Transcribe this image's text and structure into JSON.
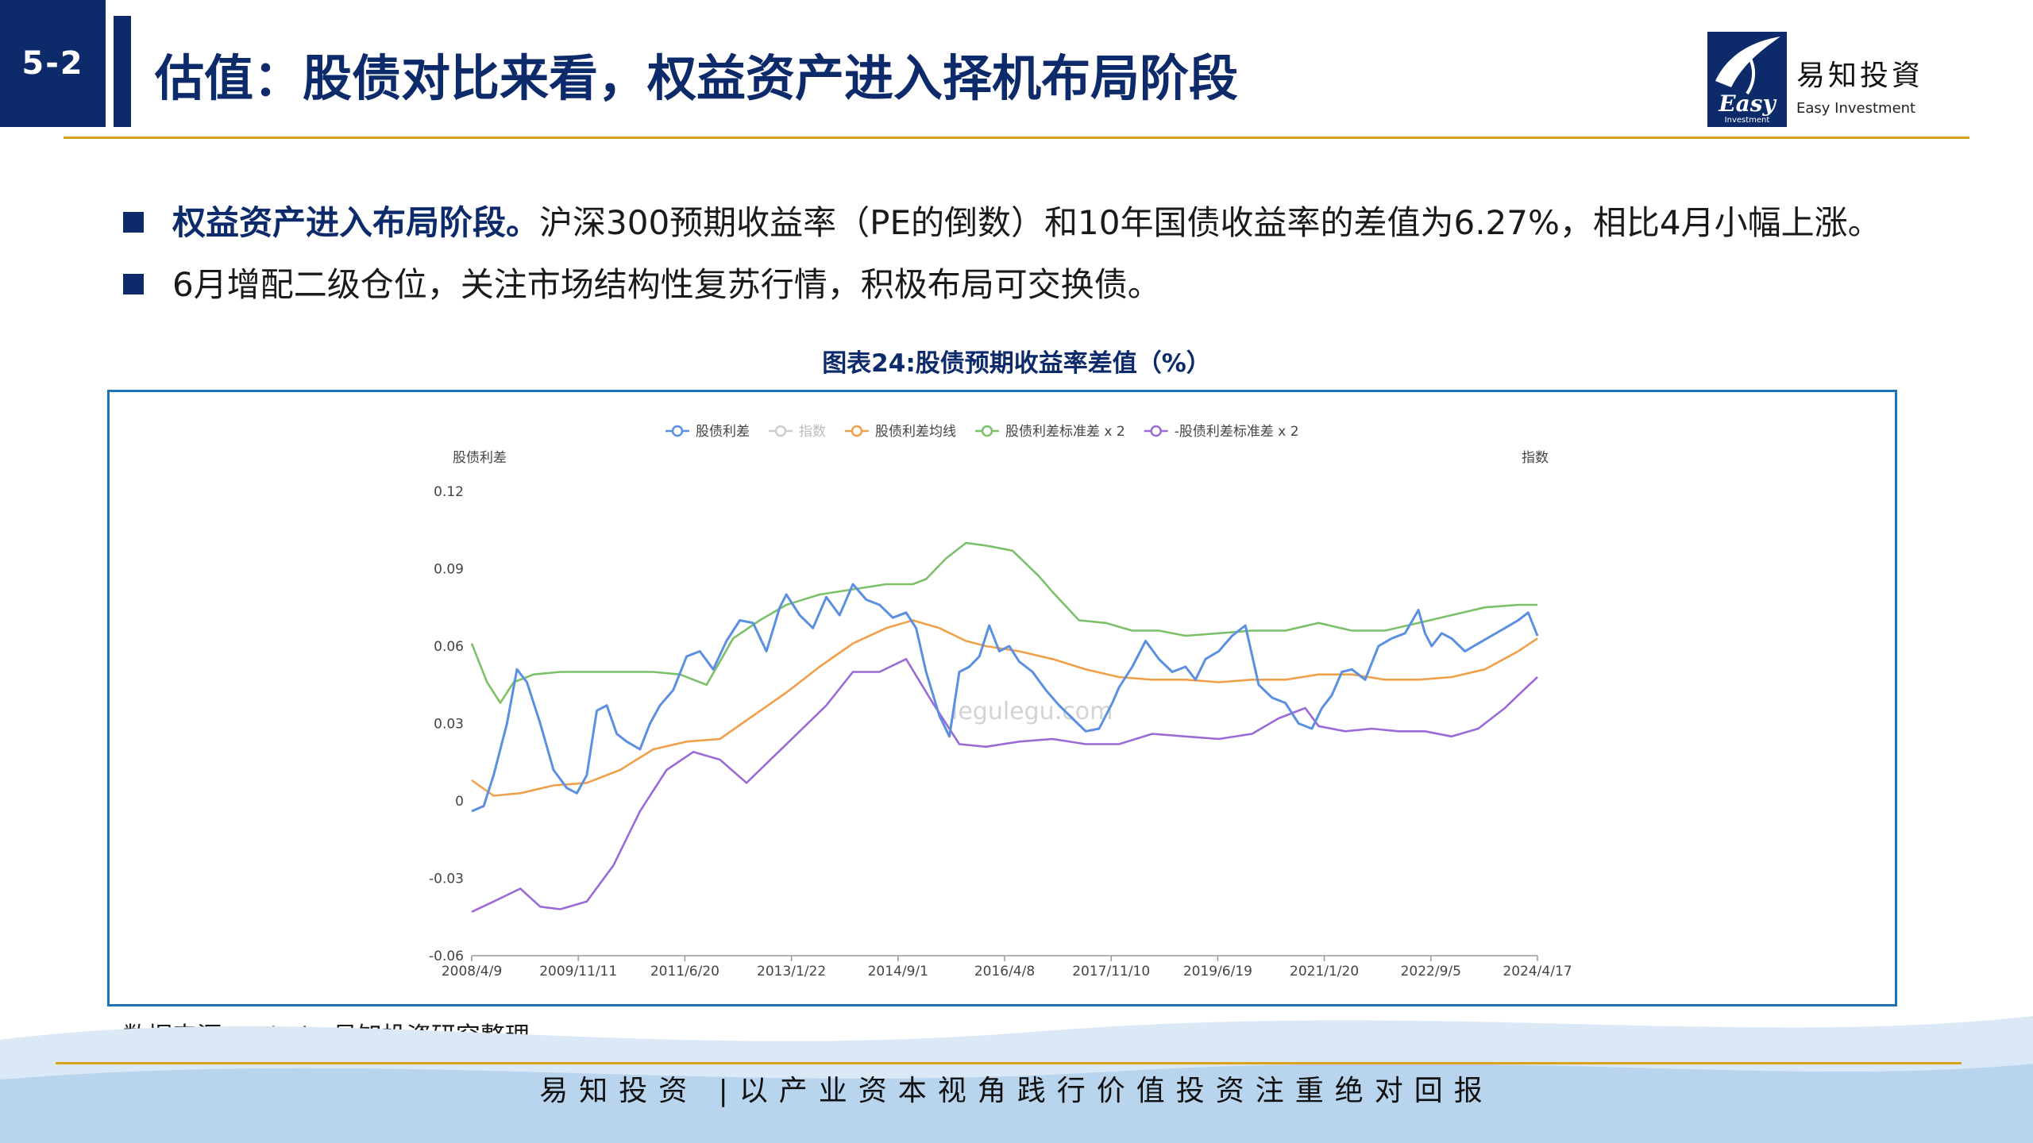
{
  "header": {
    "section_no": "5-2",
    "title": "估值：股债对比来看，权益资产进入择机布局阶段"
  },
  "logo": {
    "cn": "易知投資",
    "en": "Easy Investment",
    "mark_text": "Easy",
    "mark_sub": "Investment"
  },
  "bullets": [
    {
      "bold": "权益资产进入布局阶段。",
      "text": "沪深300预期收益率（PE的倒数）和10年国债收益率的差值为6.27%，相比4月小幅上涨。"
    },
    {
      "bold": "",
      "text": "6月增配二级仓位，关注市场结构性复苏行情，积极布局可交换债。"
    }
  ],
  "chart_title": "图表24:股债预期收益率差值（%）",
  "source": "数据来源：Wind、易知投资研究整理",
  "footer": "易知投资 |以产业资本视角践行价值投资注重绝对回报",
  "watermark": "legulegu.com",
  "chart_data": {
    "type": "line",
    "title": "",
    "ylabel_left": "股债利差",
    "ylabel_right": "指数",
    "ylim": [
      -0.06,
      0.12
    ],
    "yticks": [
      "0.12",
      "0.09",
      "0.06",
      "0.03",
      "0",
      "-0.03",
      "-0.06"
    ],
    "xticks": [
      "2008/4/9",
      "2009/11/11",
      "2011/6/20",
      "2013/1/22",
      "2014/9/1",
      "2016/4/8",
      "2017/11/10",
      "2019/6/19",
      "2021/1/20",
      "2022/9/5",
      "2024/4/17"
    ],
    "xlim": [
      2008.27,
      2024.29
    ],
    "legend_position": "top",
    "legend": [
      {
        "name": "股债利差",
        "color": "#5b8fe0"
      },
      {
        "name": "指数",
        "color": "#cccccc"
      },
      {
        "name": "股债利差均线",
        "color": "#f0a04b"
      },
      {
        "name": "股债利差标准差 x 2",
        "color": "#7cc16a"
      },
      {
        "name": "-股债利差标准差 x 2",
        "color": "#9b6ad6"
      }
    ],
    "series": [
      {
        "name": "股债利差",
        "color": "#5b8fe0",
        "x": [
          2008.27,
          2008.45,
          2008.6,
          2008.8,
          2008.95,
          2009.1,
          2009.3,
          2009.5,
          2009.7,
          2009.85,
          2010.0,
          2010.15,
          2010.3,
          2010.45,
          2010.6,
          2010.8,
          2010.95,
          2011.1,
          2011.3,
          2011.5,
          2011.7,
          2011.9,
          2012.1,
          2012.3,
          2012.5,
          2012.7,
          2012.9,
          2013.0,
          2013.2,
          2013.4,
          2013.6,
          2013.8,
          2014.0,
          2014.2,
          2014.4,
          2014.6,
          2014.8,
          2014.95,
          2015.1,
          2015.3,
          2015.45,
          2015.6,
          2015.75,
          2015.9,
          2016.05,
          2016.2,
          2016.35,
          2016.5,
          2016.7,
          2016.9,
          2017.1,
          2017.3,
          2017.5,
          2017.7,
          2017.9,
          2018.0,
          2018.2,
          2018.4,
          2018.6,
          2018.8,
          2019.0,
          2019.15,
          2019.3,
          2019.5,
          2019.7,
          2019.9,
          2020.1,
          2020.3,
          2020.5,
          2020.7,
          2020.9,
          2021.05,
          2021.2,
          2021.35,
          2021.5,
          2021.7,
          2021.9,
          2022.1,
          2022.3,
          2022.5,
          2022.6,
          2022.7,
          2022.85,
          2023.0,
          2023.2,
          2023.4,
          2023.6,
          2023.8,
          2024.0,
          2024.15,
          2024.29
        ],
        "y": [
          -0.004,
          -0.002,
          0.01,
          0.03,
          0.051,
          0.046,
          0.03,
          0.012,
          0.005,
          0.003,
          0.01,
          0.035,
          0.037,
          0.026,
          0.023,
          0.02,
          0.03,
          0.037,
          0.043,
          0.056,
          0.058,
          0.051,
          0.062,
          0.07,
          0.069,
          0.058,
          0.075,
          0.08,
          0.072,
          0.067,
          0.079,
          0.072,
          0.084,
          0.078,
          0.076,
          0.071,
          0.073,
          0.067,
          0.05,
          0.033,
          0.025,
          0.05,
          0.052,
          0.056,
          0.068,
          0.058,
          0.06,
          0.054,
          0.05,
          0.043,
          0.037,
          0.032,
          0.027,
          0.028,
          0.038,
          0.044,
          0.052,
          0.062,
          0.055,
          0.05,
          0.052,
          0.047,
          0.055,
          0.058,
          0.064,
          0.068,
          0.045,
          0.04,
          0.038,
          0.03,
          0.028,
          0.036,
          0.041,
          0.05,
          0.051,
          0.047,
          0.06,
          0.063,
          0.065,
          0.074,
          0.065,
          0.06,
          0.065,
          0.063,
          0.058,
          0.061,
          0.064,
          0.067,
          0.07,
          0.073,
          0.064
        ]
      },
      {
        "name": "股债利差均线",
        "color": "#f0a04b",
        "x": [
          2008.27,
          2008.6,
          2009.0,
          2009.5,
          2010.0,
          2010.5,
          2011.0,
          2011.5,
          2012.0,
          2012.5,
          2013.0,
          2013.5,
          2014.0,
          2014.5,
          2014.9,
          2015.3,
          2015.7,
          2016.0,
          2016.5,
          2017.0,
          2017.5,
          2018.0,
          2018.5,
          2019.0,
          2019.5,
          2020.0,
          2020.5,
          2021.0,
          2021.5,
          2022.0,
          2022.5,
          2023.0,
          2023.5,
          2024.0,
          2024.29
        ],
        "y": [
          0.008,
          0.002,
          0.003,
          0.006,
          0.007,
          0.012,
          0.02,
          0.023,
          0.024,
          0.033,
          0.042,
          0.052,
          0.061,
          0.067,
          0.07,
          0.067,
          0.062,
          0.06,
          0.058,
          0.055,
          0.051,
          0.048,
          0.047,
          0.047,
          0.046,
          0.047,
          0.047,
          0.049,
          0.049,
          0.047,
          0.047,
          0.048,
          0.051,
          0.058,
          0.063
        ]
      },
      {
        "name": "股债利差标准差 x 2",
        "color": "#7cc16a",
        "x": [
          2008.27,
          2008.5,
          2008.7,
          2008.9,
          2009.2,
          2009.6,
          2010.0,
          2010.5,
          2011.0,
          2011.4,
          2011.8,
          2012.2,
          2012.6,
          2013.0,
          2013.5,
          2014.0,
          2014.5,
          2014.9,
          2015.1,
          2015.4,
          2015.7,
          2016.0,
          2016.4,
          2016.8,
          2017.0,
          2017.4,
          2017.8,
          2018.2,
          2018.6,
          2019.0,
          2019.5,
          2020.0,
          2020.5,
          2021.0,
          2021.5,
          2022.0,
          2022.5,
          2023.0,
          2023.5,
          2024.0,
          2024.29
        ],
        "y": [
          0.061,
          0.046,
          0.038,
          0.046,
          0.049,
          0.05,
          0.05,
          0.05,
          0.05,
          0.049,
          0.045,
          0.063,
          0.07,
          0.076,
          0.08,
          0.082,
          0.084,
          0.084,
          0.086,
          0.094,
          0.1,
          0.099,
          0.097,
          0.087,
          0.081,
          0.07,
          0.069,
          0.066,
          0.066,
          0.064,
          0.065,
          0.066,
          0.066,
          0.069,
          0.066,
          0.066,
          0.069,
          0.072,
          0.075,
          0.076,
          0.076
        ]
      },
      {
        "name": "-股债利差标准差 x 2",
        "color": "#9b6ad6",
        "x": [
          2008.27,
          2008.6,
          2009.0,
          2009.3,
          2009.6,
          2010.0,
          2010.4,
          2010.8,
          2011.2,
          2011.6,
          2012.0,
          2012.4,
          2012.8,
          2013.2,
          2013.6,
          2014.0,
          2014.4,
          2014.8,
          2015.2,
          2015.6,
          2016.0,
          2016.5,
          2017.0,
          2017.5,
          2018.0,
          2018.5,
          2019.0,
          2019.5,
          2020.0,
          2020.4,
          2020.8,
          2021.0,
          2021.4,
          2021.8,
          2022.2,
          2022.6,
          2023.0,
          2023.4,
          2023.8,
          2024.0,
          2024.29
        ],
        "y": [
          -0.043,
          -0.039,
          -0.034,
          -0.041,
          -0.042,
          -0.039,
          -0.025,
          -0.004,
          0.012,
          0.019,
          0.016,
          0.007,
          0.017,
          0.027,
          0.037,
          0.05,
          0.05,
          0.055,
          0.038,
          0.022,
          0.021,
          0.023,
          0.024,
          0.022,
          0.022,
          0.026,
          0.025,
          0.024,
          0.026,
          0.032,
          0.036,
          0.029,
          0.027,
          0.028,
          0.027,
          0.027,
          0.025,
          0.028,
          0.036,
          0.041,
          0.048
        ]
      }
    ]
  }
}
